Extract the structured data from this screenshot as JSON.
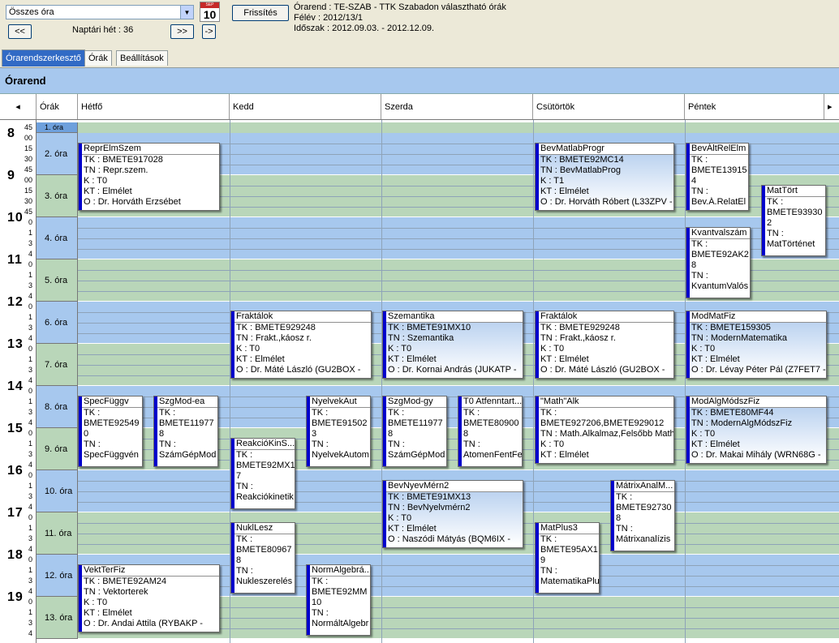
{
  "toolbar": {
    "combo_value": "Összes óra",
    "refresh_label": "Frissítés",
    "prev_label": "<<",
    "next_label": ">>",
    "next2_label": "->",
    "week_label": "Naptári hét : 36",
    "calendar_day": "10",
    "calendar_month": "SEP"
  },
  "info": {
    "line1": "Órarend : TE-SZAB - TTK Szabadon választható órák",
    "line2": "Félév : 2012/13/1",
    "line3": "Időszak : 2012.09.03. - 2012.12.09."
  },
  "tabs": [
    "Órarendszerkesztő",
    "Órák",
    "Beállítások"
  ],
  "title": "Órarend",
  "columns": {
    "left_arrow": "◂",
    "ora": "Órák",
    "days": [
      "Hétfő",
      "Kedd",
      "Szerda",
      "Csütörtök",
      "Péntek"
    ],
    "right_arrow": "▸"
  },
  "hours": [
    "8",
    "9",
    "10",
    "11",
    "12",
    "13",
    "14",
    "15",
    "16",
    "17",
    "18",
    "19"
  ],
  "top_tick": "45",
  "ticks_a": [
    "00",
    "15",
    "30",
    "45"
  ],
  "ticks_b": [
    "0",
    "1",
    "3",
    "4"
  ],
  "ora": [
    "1. óra",
    "2. óra",
    "3. óra",
    "4. óra",
    "5. óra",
    "6. óra",
    "7. óra",
    "8. óra",
    "9. óra",
    "10. óra",
    "11. óra",
    "12. óra",
    "13. óra"
  ],
  "events": [
    {
      "title": "ReprElmSzem",
      "lines": [
        "TK : BMETE917028",
        "TN : Repr.szem.",
        "K : T0",
        "KT : Elmélet",
        "O :  Dr. Horváth Erzsébet"
      ]
    },
    {
      "title": "BevMatlabProgr",
      "lines": [
        "TK : BMETE92MC14",
        "TN : BevMatlabProg",
        "K : T1",
        "KT : Elmélet",
        "O :  Dr. Horváth Róbert (L33ZPV -"
      ]
    },
    {
      "title": "BevÁltRelElm",
      "lines": [
        "TK :",
        "BMETE13915",
        "4",
        "TN :",
        "Bev.Á.RelatEl"
      ]
    },
    {
      "title": "MatTört",
      "lines": [
        "TK :",
        "BMETE93930",
        "2",
        "TN :",
        "MatTörténet"
      ]
    },
    {
      "title": "Kvantvalszám",
      "lines": [
        "TK :",
        "BMETE92AK2",
        "8",
        "TN :",
        "KvantumValós"
      ]
    },
    {
      "title": "Fraktálok",
      "lines": [
        "TK : BMETE929248",
        "TN : Frakt.,káosz r.",
        "K : T0",
        "KT : Elmélet",
        "O :  Dr. Máté László (GU2BOX -"
      ]
    },
    {
      "title": "Szemantika",
      "lines": [
        "TK : BMETE91MX10",
        "TN : Szemantika",
        "K : T0",
        "KT : Elmélet",
        "O :  Dr. Kornai András (JUKATP -"
      ]
    },
    {
      "title": "Fraktálok",
      "lines": [
        "TK : BMETE929248",
        "TN : Frakt.,káosz r.",
        "K : T0",
        "KT : Elmélet",
        "O :  Dr. Máté László (GU2BOX -"
      ]
    },
    {
      "title": "ModMatFiz",
      "lines": [
        "TK : BMETE159305",
        "TN : ModernMatematika",
        "K : T0",
        "KT : Elmélet",
        "O :  Dr. Lévay Péter Pál (Z7FET7 -"
      ]
    },
    {
      "title": "SpecFüggv",
      "lines": [
        "TK :",
        "BMETE92549",
        "0",
        "TN :",
        "SpecFüggvén"
      ]
    },
    {
      "title": "SzgMod-ea",
      "lines": [
        "TK :",
        "BMETE11977",
        "8",
        "TN :",
        "SzámGépMod"
      ]
    },
    {
      "title": "NyelvekAut",
      "lines": [
        "TK :",
        "BMETE91502",
        "3",
        "TN :",
        "NyelvekAutom"
      ]
    },
    {
      "title": "SzgMod-gy",
      "lines": [
        "TK :",
        "BMETE11977",
        "8",
        "TN :",
        "SzámGépMod"
      ]
    },
    {
      "title": "T0 Atfenntart...",
      "lines": [
        "TK :",
        "BMETE80900",
        "8",
        "TN :",
        "AtomenFentFej"
      ]
    },
    {
      "title": "\"Math\"Alk",
      "lines": [
        "TK :",
        "BMETE927206,BMETE929012",
        "TN : Math.Alkalmaz,Felsőbb Math.",
        "K : T0",
        "KT : Elmélet"
      ]
    },
    {
      "title": "ModAlgMódszFiz",
      "lines": [
        "TK : BMETE80MF44",
        "TN : ModernAlgMódszFiz",
        "K : T0",
        "KT : Elmélet",
        "O :  Dr. Makai Mihály (WRN68G -"
      ]
    },
    {
      "title": "ReakcióKinS...",
      "lines": [
        "TK :",
        "BMETE92MX1",
        "7",
        "TN :",
        "Reakciókinetik"
      ]
    },
    {
      "title": "BevNyevMérn2",
      "lines": [
        "TK : BMETE91MX13",
        "TN : BevNyelvmérn2",
        "K : T0",
        "KT : Elmélet",
        "O :  Naszódi Mátyás (BQM6IX -"
      ]
    },
    {
      "title": "MátrixAnalM...",
      "lines": [
        "TK :",
        "BMETE92730",
        "8",
        "TN :",
        "Mátrixanalízis"
      ]
    },
    {
      "title": "NuklLesz",
      "lines": [
        "TK :",
        "BMETE80967",
        "8",
        "TN :",
        "Nukleszerelés"
      ]
    },
    {
      "title": "MatPlus3",
      "lines": [
        "TK :",
        "BMETE95AX1",
        "9",
        "TN :",
        "MatematikaPlu"
      ]
    },
    {
      "title": "VektTerFiz",
      "lines": [
        "TK : BMETE92AM24",
        "TN : Vektorterek",
        "K : T0",
        "KT : Elmélet",
        "O :  Dr. Andai Attila (RYBAKP -"
      ]
    },
    {
      "title": "NormAlgebrá...",
      "lines": [
        "TK :",
        "BMETE92MM",
        "10",
        "TN :",
        "NormáltAlgebr"
      ]
    }
  ]
}
